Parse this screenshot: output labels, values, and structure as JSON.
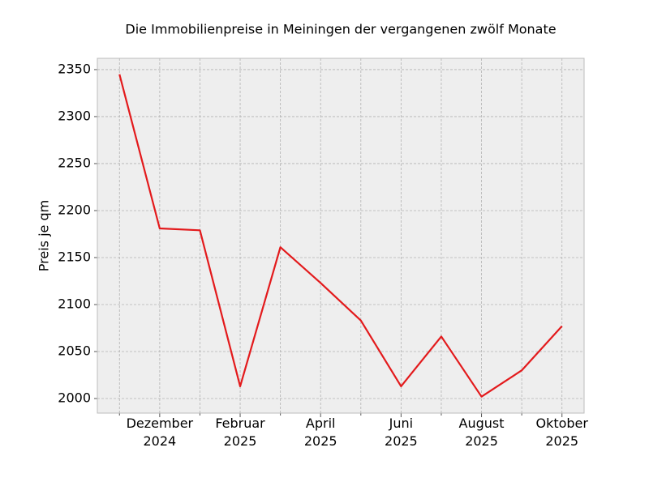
{
  "chart_data": {
    "type": "line",
    "title": "Die Immobilienpreise in Meiningen der vergangenen zwölf Monate",
    "y_label": "Preis je qm",
    "categories": [
      null,
      "Dezember\n2024",
      null,
      "Februar\n2025",
      null,
      "April\n2025",
      null,
      "Juni\n2025",
      null,
      "August\n2025",
      null,
      "Oktober\n2025"
    ],
    "series": [
      {
        "name": "Preis je qm",
        "color": "#e31a1c",
        "values": [
          2345,
          2181,
          2179,
          2013,
          2161,
          2123,
          2083,
          2013,
          2066,
          2002,
          2030,
          2077
        ]
      }
    ],
    "ylim": [
      1984.5,
      2362
    ],
    "yticks": [
      2000,
      2050,
      2100,
      2150,
      2200,
      2250,
      2300,
      2350
    ],
    "grid": true
  }
}
